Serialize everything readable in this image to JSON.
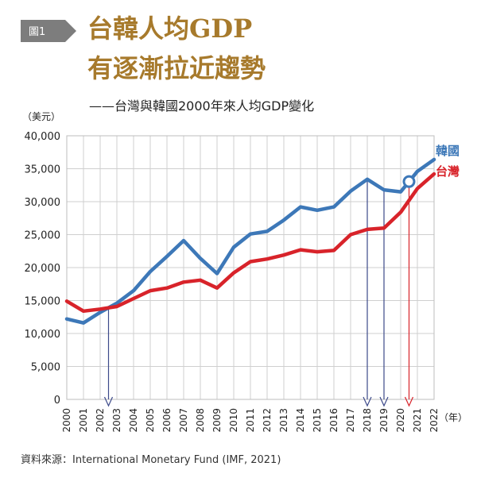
{
  "badge": {
    "label": "圖1"
  },
  "title": {
    "line1": "台韓人均GDP",
    "line2": "有逐漸拉近趨勢"
  },
  "subtitle": "——台灣與韓國2000年來人均GDP變化",
  "source": "資料來源：International Monetary Fund (IMF, 2021)",
  "colors": {
    "title": "#a77a2c",
    "korea": "#3d78b8",
    "taiwan": "#d8232a",
    "badge": "#7d7d7d"
  },
  "chart_data": {
    "type": "line",
    "title": "",
    "ylabel": "（美元）",
    "xlabel": "（年）",
    "ylim": [
      0,
      40000
    ],
    "grid": true,
    "yticks": [
      "0",
      "5,000",
      "10,000",
      "15,000",
      "20,000",
      "25,000",
      "30,000",
      "35,000",
      "40,000"
    ],
    "x": [
      "2000",
      "2001",
      "2002",
      "2003",
      "2004",
      "2005",
      "2006",
      "2007",
      "2008",
      "2009",
      "2010",
      "2011",
      "2012",
      "2013",
      "2014",
      "2015",
      "2016",
      "2017",
      "2018",
      "2019",
      "2020",
      "2021",
      "2022"
    ],
    "series": [
      {
        "name": "韓國",
        "color": "#3d78b8",
        "values": [
          12200,
          11600,
          13200,
          14600,
          16500,
          19400,
          21700,
          24100,
          21400,
          19100,
          23100,
          25100,
          25500,
          27200,
          29200,
          28700,
          29200,
          31600,
          33400,
          31800,
          31500,
          34600,
          36400
        ]
      },
      {
        "name": "台灣",
        "color": "#d8232a",
        "values": [
          14900,
          13400,
          13700,
          14100,
          15300,
          16500,
          16900,
          17800,
          18100,
          16900,
          19200,
          20900,
          21300,
          21900,
          22700,
          22400,
          22600,
          25000,
          25800,
          26000,
          28400,
          32000,
          34200
        ]
      }
    ],
    "annotations": [
      {
        "type": "arrow",
        "x": "2002.5",
        "color": "#3d4a8a"
      },
      {
        "type": "arrow",
        "x": "2018",
        "color": "#3d4a8a"
      },
      {
        "type": "arrow",
        "x": "2019",
        "color": "#3d4a8a"
      },
      {
        "type": "arrow",
        "x": "2020.5",
        "color": "#d8232a"
      },
      {
        "type": "circle",
        "x": "2020.5",
        "series": "韓國"
      }
    ]
  }
}
